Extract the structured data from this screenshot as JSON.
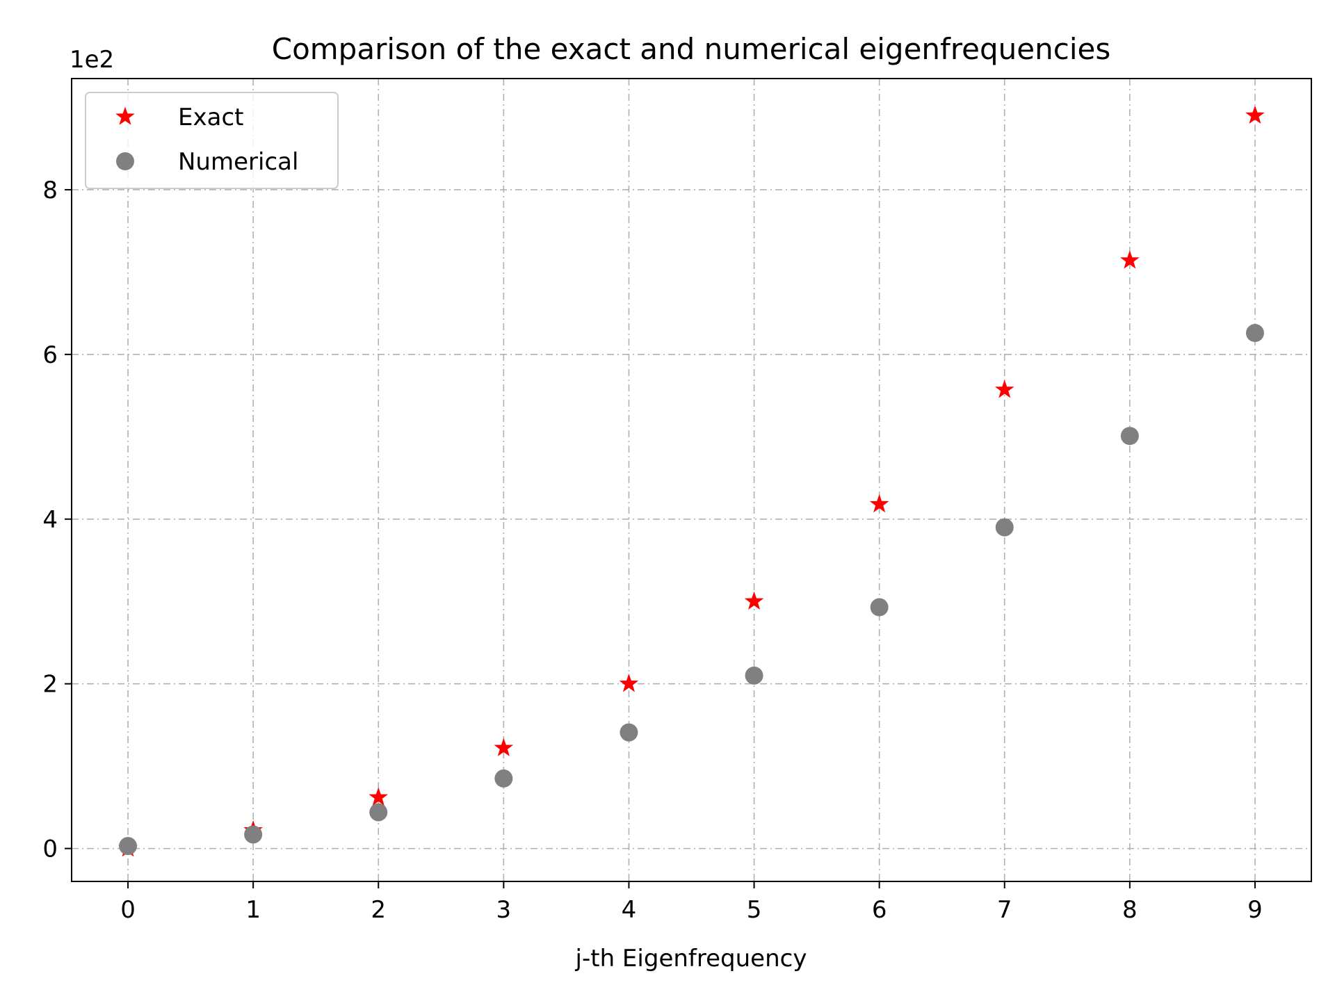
{
  "chart_data": {
    "type": "scatter",
    "title": "Comparison of the exact and numerical eigenfrequencies",
    "xlabel": "j-th Eigenfrequency",
    "ylabel": "",
    "y_offset_label": "1e2",
    "xlim": [
      -0.45,
      9.45
    ],
    "ylim": [
      -0.4,
      9.35
    ],
    "x_ticks": [
      0,
      1,
      2,
      3,
      4,
      5,
      6,
      7,
      8,
      9
    ],
    "y_ticks": [
      0,
      2,
      4,
      6,
      8
    ],
    "grid": true,
    "legend_position": "upper-left",
    "series": [
      {
        "name": "Exact",
        "marker": "star",
        "color": "#ff0000",
        "x": [
          0,
          1,
          2,
          3,
          4,
          5,
          6,
          7,
          8,
          9
        ],
        "y": [
          0.0,
          0.22,
          0.62,
          1.22,
          2.0,
          3.0,
          4.18,
          5.57,
          7.14,
          8.9
        ]
      },
      {
        "name": "Numerical",
        "marker": "circle",
        "color": "#808080",
        "x": [
          0,
          1,
          2,
          3,
          4,
          5,
          6,
          7,
          8,
          9
        ],
        "y": [
          0.03,
          0.17,
          0.44,
          0.85,
          1.41,
          2.1,
          2.93,
          3.9,
          5.01,
          6.26
        ]
      }
    ]
  }
}
